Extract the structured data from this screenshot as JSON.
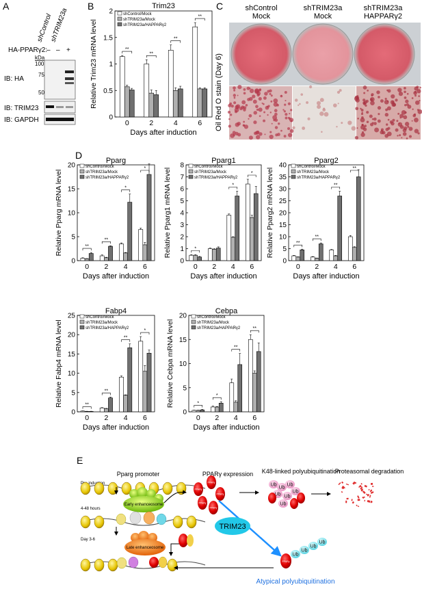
{
  "panels": {
    "A": "A",
    "B": "B",
    "C": "C",
    "D": "D",
    "E": "E"
  },
  "panelA": {
    "lane_labels": [
      "shControl",
      "shTRIM23a"
    ],
    "construct_label": "HA-PPARγ2:",
    "lane_signs": [
      "–",
      "–",
      "+"
    ],
    "kda_label": "kDa",
    "markers": [
      "100",
      "75",
      "50"
    ],
    "ib_labels": [
      "IB: HA",
      "IB: TRIM23",
      "IB: GAPDH"
    ]
  },
  "panelC": {
    "columns": [
      [
        "shControl",
        "Mock"
      ],
      [
        "shTRIM23a",
        "Mock"
      ],
      [
        "shTRIM23a",
        "HAPPARγ2"
      ]
    ],
    "side_label": "Oil Red O stain (Day 6)"
  },
  "legend": [
    "shControl/Mock",
    "shTRIM23a/Mock",
    "shTRIM23a/HAPPARγ2"
  ],
  "series_colors": [
    "#ffffff",
    "#b0b0b0",
    "#707070"
  ],
  "chart_data": [
    {
      "id": "trim23",
      "type": "bar",
      "title": "Trim23",
      "ylabel": "Relative Trim23 mRNA level",
      "xlabel": "Days after induction",
      "categories": [
        "0",
        "2",
        "4",
        "6"
      ],
      "ylim": [
        0,
        2
      ],
      "yticks": [
        "0",
        "0.5",
        "1",
        "1.5",
        "2"
      ],
      "ytick_values": [
        0,
        0.5,
        1,
        1.5,
        2
      ],
      "series": [
        {
          "name": "shControl/Mock",
          "values": [
            1.14,
            1.0,
            1.26,
            1.7
          ],
          "err": [
            0.02,
            0.08,
            0.1,
            0.08
          ]
        },
        {
          "name": "shTRIM23a/Mock",
          "values": [
            0.57,
            0.45,
            0.5,
            0.53
          ],
          "err": [
            0.03,
            0.06,
            0.05,
            0.02
          ]
        },
        {
          "name": "shTRIM23a/HAPPARγ2",
          "values": [
            0.51,
            0.42,
            0.53,
            0.53
          ],
          "err": [
            0.03,
            0.08,
            0.05,
            0.02
          ]
        }
      ],
      "sig": [
        {
          "cat": 0,
          "s": "**"
        },
        {
          "cat": 1,
          "s": "**"
        },
        {
          "cat": 2,
          "s": "**"
        },
        {
          "cat": 3,
          "s": "**"
        }
      ]
    },
    {
      "id": "pparg",
      "type": "bar",
      "title": "Pparg",
      "ylabel": "Relative Pparg mRNA level",
      "xlabel": "Days after induction",
      "categories": [
        "0",
        "2",
        "4",
        "6"
      ],
      "ylim": [
        0,
        20
      ],
      "yticks": [
        "0",
        "5",
        "10",
        "15",
        "20"
      ],
      "ytick_values": [
        0,
        5,
        10,
        15,
        20
      ],
      "series": [
        {
          "name": "shControl/Mock",
          "values": [
            0.5,
            1.0,
            3.5,
            6.5
          ],
          "err": [
            0.1,
            0.2,
            0.2,
            0.3
          ]
        },
        {
          "name": "shTRIM23a/Mock",
          "values": [
            0.4,
            0.6,
            1.6,
            3.3
          ],
          "err": [
            0.05,
            0.1,
            0.1,
            0.5
          ]
        },
        {
          "name": "shTRIM23a/HAPPARγ2",
          "values": [
            1.5,
            3.0,
            12.2,
            18.0
          ],
          "err": [
            0.2,
            0.1,
            1.7,
            2.2
          ]
        }
      ],
      "sig": [
        {
          "cat": 0,
          "s": "**"
        },
        {
          "cat": 1,
          "s": "**"
        },
        {
          "cat": 2,
          "s": "*"
        },
        {
          "cat": 3,
          "s": "*"
        }
      ]
    },
    {
      "id": "pparg1",
      "type": "bar",
      "title": "Pparg1",
      "ylabel": "Relative Pparg1 mRNA level",
      "xlabel": "Days after induction",
      "categories": [
        "0",
        "2",
        "4",
        "6"
      ],
      "ylim": [
        0,
        8
      ],
      "yticks": [
        "0",
        "1",
        "2",
        "3",
        "4",
        "5",
        "6",
        "7",
        "8"
      ],
      "ytick_values": [
        0,
        1,
        2,
        3,
        4,
        5,
        6,
        7,
        8
      ],
      "series": [
        {
          "name": "shControl/Mock",
          "values": [
            0.45,
            1.0,
            3.8,
            6.4
          ],
          "err": [
            0.05,
            0.05,
            0.1,
            0.4
          ]
        },
        {
          "name": "shTRIM23a/Mock",
          "values": [
            0.45,
            0.95,
            1.95,
            3.6
          ],
          "err": [
            0.05,
            0.05,
            0.05,
            0.2
          ]
        },
        {
          "name": "shTRIM23a/HAPPARγ2",
          "values": [
            0.3,
            1.05,
            5.4,
            5.6
          ],
          "err": [
            0.05,
            0.1,
            0.4,
            0.6
          ]
        }
      ],
      "sig": [
        {
          "cat": 0,
          "s": "*"
        },
        {
          "cat": 2,
          "s": "*"
        },
        {
          "cat": 3,
          "s": "*"
        }
      ]
    },
    {
      "id": "pparg2",
      "type": "bar",
      "title": "Pparg2",
      "ylabel": "Relative Pparg2 mRNA level",
      "xlabel": "Days after induction",
      "categories": [
        "0",
        "2",
        "4",
        "6"
      ],
      "ylim": [
        0,
        40
      ],
      "yticks": [
        "0",
        "5",
        "10",
        "15",
        "20",
        "25",
        "30",
        "35",
        "40"
      ],
      "ytick_values": [
        0,
        5,
        10,
        15,
        20,
        25,
        30,
        35,
        40
      ],
      "series": [
        {
          "name": "shControl/Mock",
          "values": [
            2.0,
            1.5,
            4.5,
            10.0
          ],
          "err": [
            0.2,
            0.2,
            0.2,
            0.5
          ]
        },
        {
          "name": "shTRIM23a/Mock",
          "values": [
            1.5,
            1.0,
            2.0,
            5.5
          ],
          "err": [
            0.1,
            0.1,
            0.2,
            0.3
          ]
        },
        {
          "name": "shTRIM23a/HAPPARγ2",
          "values": [
            4.5,
            7.0,
            27.0,
            35.0
          ],
          "err": [
            0.3,
            0.4,
            2.0,
            3.0
          ]
        }
      ],
      "sig": [
        {
          "cat": 0,
          "s": "**"
        },
        {
          "cat": 1,
          "s": "**"
        },
        {
          "cat": 2,
          "s": "**"
        },
        {
          "cat": 3,
          "s": "**"
        }
      ]
    },
    {
      "id": "fabp4",
      "type": "bar",
      "title": "Fabp4",
      "ylabel": "Relative Fabp4 mRNA level",
      "xlabel": "Days after induction",
      "categories": [
        "0",
        "2",
        "4",
        "6"
      ],
      "ylim": [
        0,
        25
      ],
      "yticks": [
        "0",
        "5",
        "10",
        "15",
        "20",
        "25"
      ],
      "ytick_values": [
        0,
        5,
        10,
        15,
        20,
        25
      ],
      "series": [
        {
          "name": "shControl/Mock",
          "values": [
            0.2,
            1.0,
            9.0,
            18.3
          ],
          "err": [
            0.05,
            0.1,
            0.3,
            1.2
          ]
        },
        {
          "name": "shTRIM23a/Mock",
          "values": [
            0.1,
            0.8,
            4.3,
            10.5
          ],
          "err": [
            0.05,
            0.1,
            0.1,
            1.5
          ]
        },
        {
          "name": "shTRIM23a/HAPPARγ2",
          "values": [
            0.1,
            3.6,
            16.6,
            15.2
          ],
          "err": [
            0.05,
            0.2,
            1.0,
            0.8
          ]
        }
      ],
      "sig": [
        {
          "cat": 0,
          "s": "**"
        },
        {
          "cat": 1,
          "s": "**"
        },
        {
          "cat": 2,
          "s": "**"
        },
        {
          "cat": 3,
          "s": "*"
        }
      ]
    },
    {
      "id": "cebpa",
      "type": "bar",
      "title": "Cebpa",
      "ylabel": "Relative Cebpa mRNA level",
      "xlabel": "Days after induction",
      "categories": [
        "0",
        "2",
        "4",
        "6"
      ],
      "ylim": [
        0,
        20
      ],
      "yticks": [
        "0",
        "5",
        "10",
        "15",
        "20"
      ],
      "ytick_values": [
        0,
        5,
        10,
        15,
        20
      ],
      "series": [
        {
          "name": "shControl/Mock",
          "values": [
            0.3,
            1.0,
            6.0,
            15.0
          ],
          "err": [
            0.05,
            0.2,
            0.8,
            1.0
          ]
        },
        {
          "name": "shTRIM23a/Mock",
          "values": [
            0.3,
            1.0,
            2.0,
            8.0
          ],
          "err": [
            0.05,
            0.1,
            0.3,
            0.5
          ]
        },
        {
          "name": "shTRIM23a/HAPPARγ2",
          "values": [
            0.4,
            1.8,
            9.8,
            12.5
          ],
          "err": [
            0.1,
            0.3,
            2.3,
            1.8
          ]
        }
      ],
      "sig": [
        {
          "cat": 0,
          "s": "*"
        },
        {
          "cat": 1,
          "s": "*"
        },
        {
          "cat": 2,
          "s": "**"
        },
        {
          "cat": 3,
          "s": "**"
        }
      ]
    }
  ],
  "panelE": {
    "headers": [
      "Pparg promoter",
      "PPARγ expression",
      "K48-linked polyubiquitination",
      "Proteasomal degradation"
    ],
    "rows": [
      "Pre-induction",
      "4-48 hours",
      "Day 3-6"
    ],
    "early": "Early enhanceosome",
    "late": "Late enhanceosome",
    "protein": "PPARγ",
    "ub": "Ub",
    "trim": "TRIM23",
    "atypical": "Atypical polyubiquitination"
  }
}
